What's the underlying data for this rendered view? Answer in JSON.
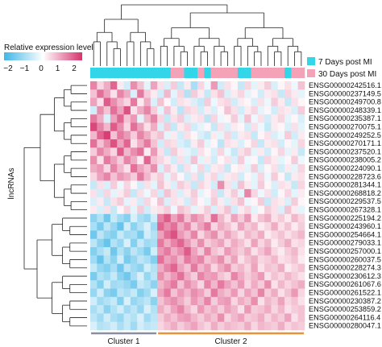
{
  "chart_data": {
    "type": "heatmap",
    "title": "",
    "ylabel": "lncRNAs",
    "color_scale": {
      "title": "Relative expression level",
      "ticks": [
        "−2",
        "−1",
        "0",
        "1",
        "2"
      ],
      "min": -2,
      "max": 2,
      "low_color": "#41b6e6",
      "mid_color": "#ffffff",
      "high_color": "#d6336c"
    },
    "group_legend": [
      {
        "label": "7 Days post MI",
        "color": "#33d6e8"
      },
      {
        "label": "30 Days post MI",
        "color": "#f4a2b8"
      }
    ],
    "clusters": [
      {
        "label": "Cluster 1",
        "color": "#8a8fa0",
        "columns": 10
      },
      {
        "label": "Cluster 2",
        "color": "#e8923a",
        "columns": 22
      }
    ],
    "column_groups": [
      0,
      0,
      0,
      0,
      0,
      0,
      0,
      0,
      0,
      0,
      0,
      0,
      1,
      1,
      0,
      0,
      1,
      0,
      1,
      1,
      1,
      1,
      0,
      0,
      1,
      1,
      1,
      1,
      1,
      0,
      1,
      1
    ],
    "rows": [
      "ENSG00000242516.1",
      "ENSG00000237149.5",
      "ENSG00000249700.8",
      "ENSG00000248339.1",
      "ENSG00000235387.1",
      "ENSG00000270075.1",
      "ENSG00000249252.5",
      "ENSG00000270171.1",
      "ENSG00000237520.1",
      "ENSG00000238005.2",
      "ENSG00000224090.1",
      "ENSG00000228723.6",
      "ENSG00000281344.1",
      "ENSG00000268818.2",
      "ENSG00000229537.5",
      "ENSG00000267328.1",
      "ENSG00000225194.2",
      "ENSG00000243960.1",
      "ENSG00000254664.1",
      "ENSG00000279033.1",
      "ENSG00000257000.1",
      "ENSG00000260037.5",
      "ENSG00000228274.3",
      "ENSG00000230612.3",
      "ENSG00000261067.6",
      "ENSG00000261522.1",
      "ENSG00000230387.2",
      "ENSG00000253859.2",
      "ENSG00000264116.4",
      "ENSG00000280047.1"
    ],
    "values": [
      [
        1.2,
        0.4,
        0.8,
        1.5,
        0.2,
        -0.5,
        1.1,
        0.6,
        -0.3,
        0.9,
        0.3,
        -0.4,
        0.5,
        -0.6,
        0.2,
        -0.9,
        0.4,
        -0.2,
        1.0,
        -0.5,
        0.3,
        0.1,
        -0.6,
        0.4,
        -0.3,
        0.2,
        0.5,
        -0.4,
        0.1,
        0.3,
        -0.2,
        0.6
      ],
      [
        0.6,
        1.4,
        0.9,
        0.3,
        1.2,
        0.8,
        -0.4,
        1.3,
        0.5,
        0.2,
        -0.5,
        0.7,
        -0.3,
        0.4,
        -0.8,
        0.5,
        0.2,
        -0.6,
        0.3,
        0.6,
        -0.4,
        0.2,
        0.4,
        -0.3,
        0.1,
        -0.5,
        0.2,
        0.3,
        -0.6,
        0.4,
        0.2,
        -0.3
      ],
      [
        0.9,
        0.3,
        1.6,
        1.1,
        0.7,
        0.4,
        1.3,
        0.2,
        0.8,
        -0.4,
        0.6,
        0.1,
        -0.5,
        0.3,
        0.2,
        -0.4,
        -0.6,
        0.5,
        -0.2,
        0.3,
        0.4,
        -0.5,
        0.2,
        0.1,
        -0.4,
        0.3,
        -0.2,
        0.5,
        0.2,
        -0.6,
        0.3,
        0.1
      ],
      [
        -0.5,
        1.1,
        0.6,
        1.4,
        0.9,
        1.7,
        0.3,
        0.8,
        1.2,
        0.5,
        -0.3,
        0.6,
        0.2,
        -0.7,
        0.4,
        0.3,
        -0.5,
        0.2,
        -0.4,
        0.1,
        0.6,
        0.3,
        -0.5,
        0.2,
        0.4,
        -0.3,
        0.1,
        -0.5,
        0.3,
        0.2,
        -0.4,
        0.5
      ],
      [
        1.3,
        0.8,
        -0.4,
        0.9,
        1.5,
        0.6,
        1.0,
        -0.3,
        0.7,
        1.2,
        0.4,
        -0.6,
        0.3,
        0.5,
        -0.4,
        0.2,
        0.3,
        -0.7,
        0.4,
        -0.2,
        0.1,
        0.5,
        -0.3,
        0.6,
        -0.2,
        0.3,
        -0.5,
        0.2,
        0.4,
        -0.3,
        0.1,
        -0.4
      ],
      [
        1.8,
        1.2,
        0.7,
        1.6,
        1.1,
        0.4,
        1.4,
        0.9,
        0.3,
        0.8,
        -0.4,
        0.5,
        -0.6,
        0.2,
        0.4,
        -0.5,
        -0.3,
        0.1,
        -0.6,
        0.3,
        -0.4,
        0.2,
        0.1,
        -0.5,
        0.3,
        -0.2,
        -0.6,
        0.2,
        0.1,
        -0.4,
        0.3,
        -0.3
      ],
      [
        0.7,
        1.5,
        1.9,
        0.6,
        1.3,
        1.0,
        0.5,
        1.2,
        0.8,
        0.4,
        0.6,
        -0.3,
        0.2,
        -0.5,
        0.3,
        0.1,
        -0.4,
        -0.6,
        0.2,
        -0.3,
        0.4,
        -0.5,
        0.2,
        0.3,
        -0.6,
        0.1,
        0.3,
        -0.4,
        -0.2,
        0.5,
        -0.5,
        0.2
      ],
      [
        1.4,
        0.6,
        1.1,
        1.7,
        0.9,
        1.5,
        0.3,
        0.8,
        1.3,
        0.6,
        -0.5,
        0.4,
        0.3,
        -0.4,
        -0.6,
        0.2,
        0.5,
        -0.3,
        0.1,
        -0.7,
        0.3,
        0.2,
        -0.4,
        0.1,
        0.4,
        -0.6,
        0.2,
        0.3,
        -0.5,
        0.1,
        -0.3,
        0.4
      ],
      [
        0.5,
        1.2,
        0.8,
        0.4,
        1.6,
        0.7,
        1.1,
        1.4,
        0.2,
        1.0,
        0.3,
        -0.6,
        0.5,
        0.2,
        -0.3,
        -0.5,
        0.3,
        0.1,
        -0.4,
        0.4,
        -0.2,
        -0.6,
        0.3,
        0.5,
        -0.3,
        0.2,
        -0.5,
        0.1,
        0.4,
        -0.3,
        0.2,
        -0.6
      ],
      [
        1.1,
        0.3,
        1.3,
        0.9,
        0.5,
        1.2,
        0.8,
        0.2,
        1.5,
        0.6,
        0.4,
        0.2,
        -0.5,
        0.3,
        -0.4,
        0.6,
        -0.3,
        0.2,
        -0.5,
        0.1,
        0.3,
        -0.4,
        0.5,
        -0.2,
        0.1,
        -0.6,
        0.4,
        0.2,
        -0.3,
        0.1,
        0.5,
        -0.2
      ],
      [
        0.8,
        1.0,
        0.4,
        1.2,
        0.7,
        0.3,
        1.4,
        0.9,
        0.6,
        1.1,
        -0.4,
        0.5,
        0.2,
        -0.6,
        0.3,
        -0.2,
        0.4,
        -0.5,
        0.2,
        0.3,
        -0.6,
        0.1,
        0.2,
        -0.3,
        0.5,
        -0.4,
        0.1,
        0.3,
        -0.5,
        0.2,
        -0.3,
        0.4
      ],
      [
        0.4,
        0.9,
        1.2,
        0.6,
        1.0,
        0.8,
        0.5,
        1.3,
        0.7,
        0.3,
        0.5,
        -0.3,
        0.4,
        0.1,
        -0.5,
        0.3,
        -0.6,
        0.2,
        0.4,
        -0.4,
        0.2,
        0.3,
        -0.5,
        0.1,
        -0.3,
        0.4,
        -0.2,
        0.5,
        0.1,
        -0.6,
        0.2,
        0.3
      ],
      [
        -0.6,
        0.3,
        -0.4,
        0.5,
        -0.2,
        0.4,
        0.1,
        -0.5,
        0.3,
        -0.3,
        0.6,
        0.2,
        -0.4,
        0.5,
        0.3,
        -0.6,
        0.4,
        0.2,
        -0.5,
        1.1,
        0.3,
        -0.4,
        0.6,
        0.2,
        -0.3,
        0.5,
        0.1,
        -0.4,
        0.3,
        0.2,
        -0.6,
        0.4
      ],
      [
        0.3,
        -0.5,
        0.4,
        -0.3,
        0.2,
        0.5,
        -0.6,
        0.3,
        -0.2,
        0.4,
        -0.5,
        0.6,
        0.3,
        -0.4,
        0.2,
        0.5,
        -0.3,
        0.1,
        0.4,
        -0.6,
        0.2,
        0.5,
        -0.3,
        1.2,
        0.4,
        -0.2,
        0.3,
        -0.5,
        0.1,
        0.4,
        -0.3,
        0.2
      ],
      [
        -0.4,
        0.2,
        -0.6,
        0.3,
        0.5,
        -0.3,
        0.2,
        -0.5,
        0.4,
        0.1,
        0.6,
        -0.4,
        0.3,
        0.2,
        -0.5,
        0.4,
        0.1,
        -0.3,
        0.5,
        0.2,
        -0.4,
        0.3,
        0.6,
        -0.2,
        0.1,
        0.5,
        -0.6,
        0.3,
        0.2,
        -0.4,
        0.5,
        0.1
      ],
      [
        0.2,
        -0.4,
        0.3,
        -0.6,
        0.1,
        0.4,
        -0.3,
        0.5,
        -0.5,
        0.2,
        0.3,
        0.5,
        -0.2,
        0.6,
        0.4,
        -0.3,
        0.2,
        0.5,
        -0.4,
        0.3,
        0.6,
        -0.5,
        0.2,
        0.4,
        -0.3,
        0.1,
        0.5,
        0.3,
        -0.4,
        0.6,
        0.2,
        -0.3
      ],
      [
        -1.2,
        -0.8,
        -1.5,
        -0.6,
        -1.0,
        -1.3,
        -0.4,
        -0.9,
        -1.1,
        -0.5,
        1.2,
        1.6,
        0.9,
        1.3,
        0.6,
        1.1,
        0.8,
        0.4,
        1.4,
        0.7,
        0.3,
        0.9,
        0.5,
        1.0,
        0.2,
        0.6,
        0.8,
        0.3,
        0.5,
        0.2,
        0.7,
        0.4
      ],
      [
        -0.9,
        -1.4,
        -0.7,
        -1.1,
        -1.6,
        -0.5,
        -1.2,
        -0.8,
        -0.4,
        -1.0,
        1.5,
        1.1,
        1.4,
        0.8,
        1.2,
        0.5,
        0.9,
        1.3,
        0.4,
        0.8,
        0.6,
        0.3,
        0.9,
        0.5,
        0.7,
        0.2,
        0.4,
        0.8,
        0.3,
        0.6,
        0.2,
        0.5
      ],
      [
        -1.5,
        -0.7,
        -1.1,
        -1.3,
        -0.6,
        -1.0,
        -0.9,
        -1.4,
        -0.5,
        -0.8,
        0.9,
        1.4,
        1.7,
        1.0,
        0.7,
        1.2,
        0.4,
        0.8,
        1.1,
        0.5,
        0.9,
        0.6,
        0.3,
        0.7,
        0.5,
        0.8,
        0.2,
        0.4,
        0.6,
        0.3,
        0.5,
        0.7
      ],
      [
        -0.7,
        -1.2,
        -1.6,
        -0.8,
        -1.1,
        -0.4,
        -1.3,
        -0.6,
        -1.0,
        -0.9,
        1.3,
        0.8,
        1.2,
        1.5,
        1.0,
        0.6,
        1.1,
        0.5,
        0.7,
        0.9,
        0.4,
        0.8,
        0.6,
        0.3,
        0.9,
        0.4,
        0.7,
        0.2,
        0.5,
        0.8,
        0.3,
        0.4
      ],
      [
        -1.3,
        -0.9,
        -0.6,
        -1.5,
        -0.8,
        -1.2,
        -0.7,
        -1.0,
        -1.4,
        -0.5,
        1.0,
        1.3,
        0.8,
        1.1,
        1.6,
        0.9,
        0.5,
        1.2,
        0.6,
        0.4,
        1.0,
        0.7,
        0.5,
        0.8,
        0.3,
        0.6,
        0.9,
        0.4,
        0.2,
        0.5,
        0.7,
        0.3
      ],
      [
        -1.0,
        -1.6,
        -0.8,
        -1.2,
        -0.5,
        -1.4,
        -1.1,
        -0.7,
        -0.9,
        -1.3,
        1.4,
        0.9,
        1.1,
        0.7,
        1.3,
        1.0,
        1.2,
        0.6,
        0.8,
        1.1,
        0.5,
        0.9,
        0.3,
        0.6,
        0.8,
        0.4,
        0.5,
        0.7,
        0.3,
        0.4,
        0.6,
        0.2
      ],
      [
        -0.6,
        -1.1,
        -1.3,
        -0.9,
        -1.5,
        -0.7,
        -1.0,
        -1.2,
        -0.5,
        -0.8,
        0.8,
        1.2,
        1.5,
        0.9,
        0.6,
        1.3,
        0.7,
        1.0,
        0.4,
        0.8,
        1.1,
        0.5,
        0.7,
        0.4,
        0.9,
        0.3,
        0.6,
        0.5,
        0.8,
        0.2,
        0.4,
        0.6
      ],
      [
        -1.4,
        -0.8,
        -1.0,
        -0.6,
        -1.2,
        -1.5,
        -0.9,
        -0.4,
        -1.1,
        -0.7,
        1.1,
        0.7,
        1.0,
        1.4,
        0.8,
        0.5,
        1.2,
        0.9,
        1.0,
        0.6,
        0.4,
        1.2,
        0.8,
        0.5,
        0.7,
        1.0,
        0.3,
        0.6,
        0.4,
        0.7,
        0.5,
        0.3
      ],
      [
        -0.8,
        -1.3,
        -0.5,
        -1.0,
        -0.9,
        -1.1,
        -1.4,
        -0.6,
        -0.8,
        -1.2,
        0.7,
        1.0,
        1.3,
        0.6,
        1.1,
        0.8,
        0.4,
        1.2,
        0.7,
        1.3,
        0.9,
        0.6,
        1.0,
        0.4,
        0.8,
        0.5,
        1.1,
        0.3,
        0.7,
        0.4,
        0.6,
        0.8
      ],
      [
        -1.1,
        -0.5,
        -1.2,
        -1.4,
        -0.7,
        -0.9,
        -0.6,
        -1.3,
        -1.0,
        -0.4,
        0.9,
        1.3,
        0.6,
        1.0,
        0.7,
        1.1,
        0.9,
        0.5,
        1.3,
        0.8,
        0.6,
        1.0,
        0.4,
        0.9,
        0.6,
        1.2,
        0.5,
        0.8,
        0.3,
        0.6,
        1.0,
        0.4
      ],
      [
        -0.5,
        -1.0,
        -0.8,
        -0.6,
        -1.3,
        -0.4,
        -1.1,
        -0.9,
        -0.7,
        -1.2,
        0.6,
        0.9,
        1.1,
        0.8,
        0.5,
        1.0,
        0.7,
        1.2,
        0.5,
        0.9,
        1.0,
        0.4,
        0.8,
        0.6,
        1.1,
        0.3,
        0.7,
        0.5,
        0.9,
        0.4,
        0.6,
        0.3
      ],
      [
        -0.9,
        -0.6,
        -1.2,
        -0.8,
        -0.5,
        -1.0,
        -0.7,
        -1.1,
        -0.4,
        -0.8,
        0.8,
        0.5,
        0.9,
        1.2,
        0.7,
        0.4,
        1.0,
        0.6,
        0.8,
        0.5,
        0.9,
        0.7,
        0.3,
        1.0,
        0.5,
        0.6,
        0.8,
        0.4,
        0.7,
        0.3,
        0.5,
        0.6
      ],
      [
        -0.7,
        -1.0,
        -0.5,
        -0.9,
        -1.1,
        -0.6,
        -0.8,
        -0.4,
        -1.0,
        -0.7,
        0.5,
        0.8,
        0.6,
        0.9,
        1.0,
        0.7,
        0.5,
        0.8,
        0.6,
        1.1,
        0.4,
        0.7,
        0.9,
        0.5,
        0.6,
        0.8,
        0.4,
        0.7,
        0.5,
        0.9,
        0.3,
        0.6
      ],
      [
        -0.4,
        -0.8,
        -0.7,
        -0.5,
        -0.9,
        -0.6,
        -1.0,
        -0.5,
        -0.7,
        -0.6,
        0.4,
        0.6,
        0.8,
        0.5,
        0.7,
        0.9,
        0.6,
        0.4,
        0.8,
        0.5,
        0.7,
        0.6,
        0.5,
        0.8,
        0.4,
        0.7,
        0.6,
        0.5,
        0.8,
        0.4,
        0.6,
        0.5
      ]
    ]
  }
}
